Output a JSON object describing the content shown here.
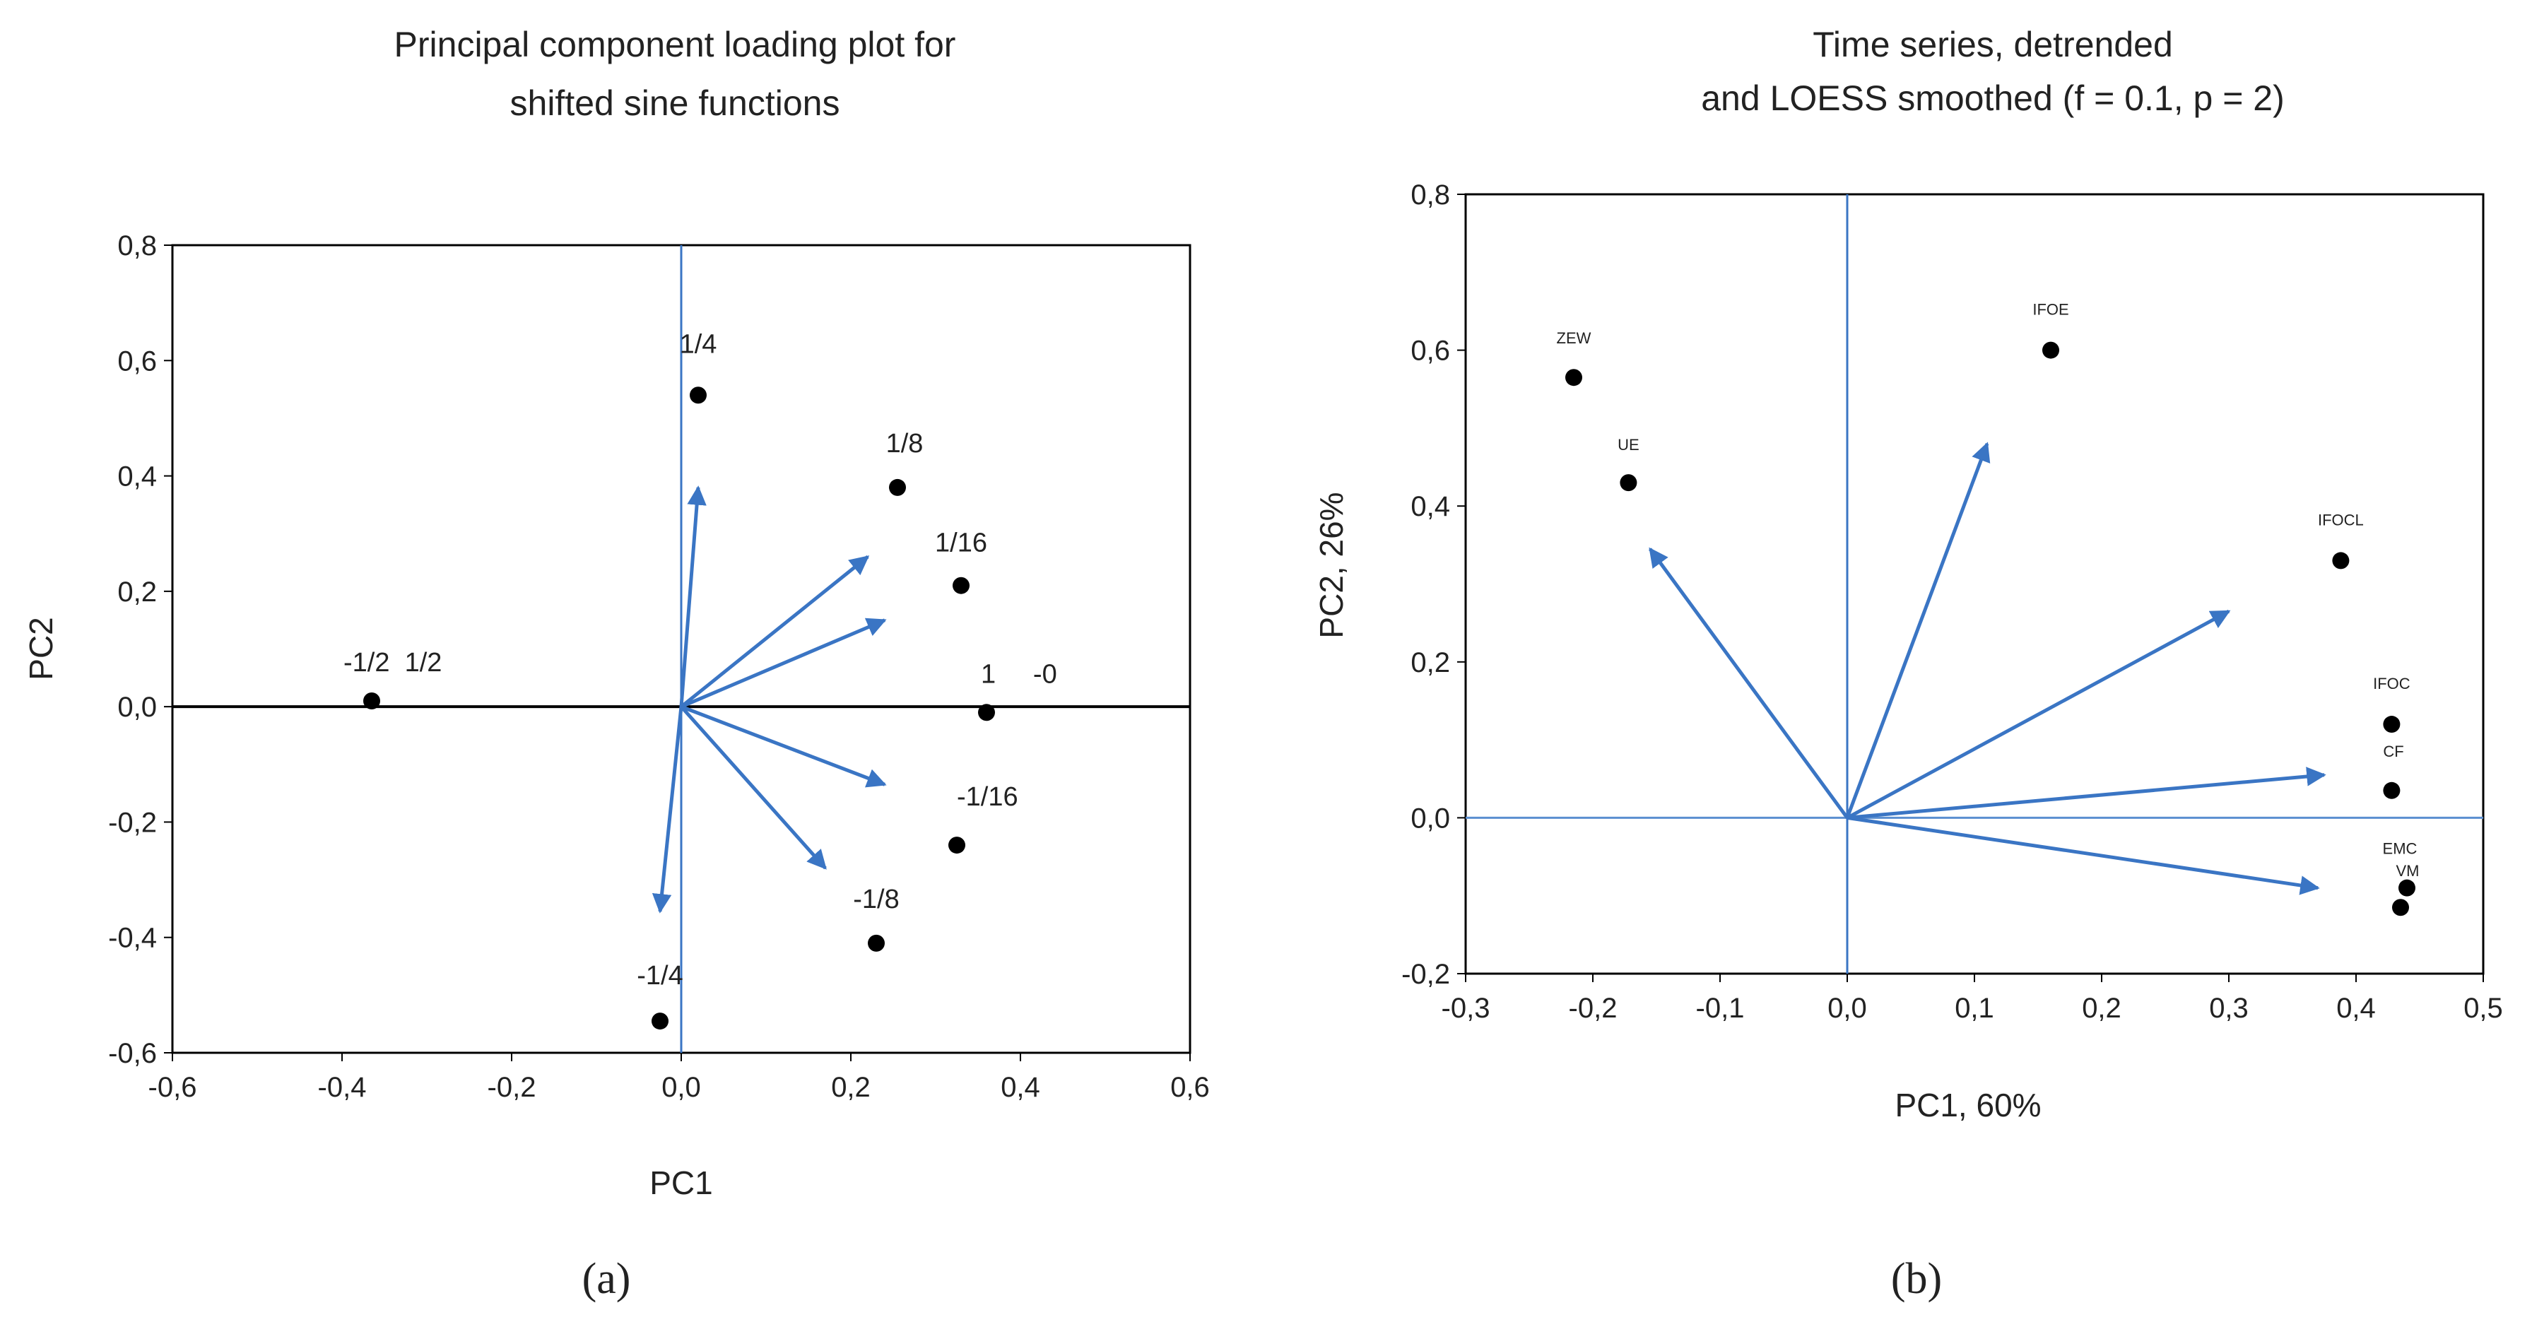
{
  "colors": {
    "arrow": "#3a75c4",
    "axis_line_b": "#5b8fd0",
    "point": "#000000",
    "frame": "#000000"
  },
  "chart_data": [
    {
      "type": "scatter",
      "id": "a",
      "title_lines": [
        "Principal component loading plot for",
        "shifted sine functions"
      ],
      "xlabel": "PC1",
      "ylabel": "PC2",
      "xlim": [
        -0.6,
        0.6
      ],
      "ylim": [
        -0.6,
        0.8
      ],
      "xticks": [
        -0.6,
        -0.4,
        -0.2,
        0.0,
        0.2,
        0.4,
        0.6
      ],
      "xtick_labels": [
        "-0,6",
        "-0,4",
        "-0,2",
        "0,0",
        "0,2",
        "0,4",
        "0,6"
      ],
      "yticks": [
        -0.6,
        -0.4,
        -0.2,
        0.0,
        0.2,
        0.4,
        0.6,
        0.8
      ],
      "ytick_labels": [
        "-0,6",
        "-0,4",
        "-0,2",
        "0,0",
        "0,2",
        "0,4",
        "0,6",
        "0,8"
      ],
      "points": [
        {
          "label": "1/4",
          "x": 0.02,
          "y": 0.54
        },
        {
          "label": "1/8",
          "x": 0.255,
          "y": 0.38
        },
        {
          "label": "1/16",
          "x": 0.33,
          "y": 0.21
        },
        {
          "label": "1     -0",
          "x": 0.36,
          "y": -0.01
        },
        {
          "label": "-1/16",
          "x": 0.325,
          "y": -0.24
        },
        {
          "label": "-1/8",
          "x": 0.23,
          "y": -0.41
        },
        {
          "label": "-1/4",
          "x": -0.025,
          "y": -0.545
        },
        {
          "label": "-1/2  1/2",
          "x": -0.365,
          "y": 0.01
        }
      ],
      "arrows": [
        {
          "x": 0.02,
          "y": 0.38
        },
        {
          "x": 0.22,
          "y": 0.26
        },
        {
          "x": 0.24,
          "y": 0.15
        },
        {
          "x": 0.24,
          "y": -0.135
        },
        {
          "x": 0.17,
          "y": -0.28
        },
        {
          "x": -0.025,
          "y": -0.355
        }
      ],
      "caption": "(a)"
    },
    {
      "type": "scatter",
      "id": "b",
      "title_lines": [
        "Time series, detrended",
        "and LOESS smoothed (f = 0.1, p = 2)"
      ],
      "xlabel": "PC1, 60%",
      "ylabel": "PC2, 26%",
      "xlim": [
        -0.3,
        0.5
      ],
      "ylim": [
        -0.2,
        0.8
      ],
      "xticks": [
        -0.3,
        -0.2,
        -0.1,
        0.0,
        0.1,
        0.2,
        0.3,
        0.4,
        0.5
      ],
      "xtick_labels": [
        "-0,3",
        "-0,2",
        "-0,1",
        "0,0",
        "0,1",
        "0,2",
        "0,3",
        "0,4",
        "0,5"
      ],
      "yticks": [
        -0.2,
        0.0,
        0.2,
        0.4,
        0.6,
        0.8
      ],
      "ytick_labels": [
        "-0,2",
        "0,0",
        "0,2",
        "0,4",
        "0,6",
        "0,8"
      ],
      "points": [
        {
          "label": "ZEW",
          "x": -0.215,
          "y": 0.565
        },
        {
          "label": "UE",
          "x": -0.172,
          "y": 0.43
        },
        {
          "label": "IFOE",
          "x": 0.16,
          "y": 0.6
        },
        {
          "label": "IFOCL",
          "x": 0.388,
          "y": 0.33
        },
        {
          "label": "IFOC",
          "x": 0.428,
          "y": 0.12
        },
        {
          "label": "CF",
          "x": 0.428,
          "y": 0.035
        },
        {
          "label": "EMC",
          "x": 0.44,
          "y": -0.09
        },
        {
          "label": "VM",
          "x": 0.435,
          "y": -0.115
        }
      ],
      "arrows": [
        {
          "x": -0.155,
          "y": 0.345
        },
        {
          "x": 0.11,
          "y": 0.48
        },
        {
          "x": 0.3,
          "y": 0.265
        },
        {
          "x": 0.375,
          "y": 0.055
        },
        {
          "x": 0.37,
          "y": -0.09
        }
      ],
      "caption": "(b)"
    }
  ]
}
